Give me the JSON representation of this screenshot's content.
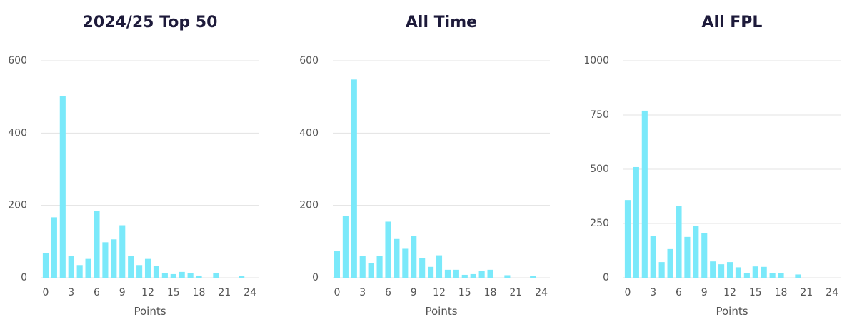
{
  "chart_data": [
    {
      "type": "bar",
      "title": "2024/25 Top 50",
      "x_label": "Points",
      "color": "#7ae9fa",
      "grid": true,
      "x": [
        0,
        1,
        2,
        3,
        4,
        5,
        6,
        7,
        8,
        9,
        10,
        11,
        12,
        13,
        14,
        15,
        16,
        17,
        18,
        19,
        20,
        21,
        22,
        23,
        24
      ],
      "values": [
        68,
        167,
        503,
        60,
        35,
        52,
        184,
        98,
        106,
        145,
        60,
        35,
        52,
        32,
        12,
        10,
        16,
        12,
        6,
        0,
        13,
        0,
        0,
        4,
        0
      ],
      "xlim": [
        -0.5,
        25
      ],
      "xticks": [
        0,
        3,
        6,
        9,
        12,
        15,
        18,
        21,
        24
      ],
      "ylim": [
        0,
        600
      ],
      "yticks": [
        0,
        200,
        400,
        600
      ]
    },
    {
      "type": "bar",
      "title": "All Time",
      "x_label": "Points",
      "color": "#7ae9fa",
      "grid": true,
      "x": [
        0,
        1,
        2,
        3,
        4,
        5,
        6,
        7,
        8,
        9,
        10,
        11,
        12,
        13,
        14,
        15,
        16,
        17,
        18,
        19,
        20,
        21,
        22,
        23,
        24
      ],
      "values": [
        73,
        170,
        548,
        60,
        40,
        60,
        155,
        107,
        80,
        115,
        55,
        30,
        62,
        22,
        22,
        8,
        10,
        18,
        22,
        0,
        7,
        0,
        0,
        4,
        0
      ],
      "xlim": [
        -0.5,
        25
      ],
      "xticks": [
        0,
        3,
        6,
        9,
        12,
        15,
        18,
        21,
        24
      ],
      "ylim": [
        0,
        600
      ],
      "yticks": [
        0,
        200,
        400,
        600
      ]
    },
    {
      "type": "bar",
      "title": "All FPL",
      "x_label": "Points",
      "color": "#7ae9fa",
      "grid": true,
      "x": [
        0,
        1,
        2,
        3,
        4,
        5,
        6,
        7,
        8,
        9,
        10,
        11,
        12,
        13,
        14,
        15,
        16,
        17,
        18,
        19,
        20,
        21,
        22,
        23,
        24
      ],
      "values": [
        358,
        510,
        770,
        193,
        72,
        132,
        330,
        188,
        240,
        205,
        75,
        62,
        72,
        48,
        22,
        52,
        50,
        22,
        22,
        0,
        15,
        0,
        0,
        0,
        0
      ],
      "xlim": [
        -0.5,
        25
      ],
      "xticks": [
        0,
        3,
        6,
        9,
        12,
        15,
        18,
        21,
        24
      ],
      "ylim": [
        0,
        1000
      ],
      "yticks": [
        0,
        250,
        500,
        750,
        1000
      ]
    }
  ]
}
